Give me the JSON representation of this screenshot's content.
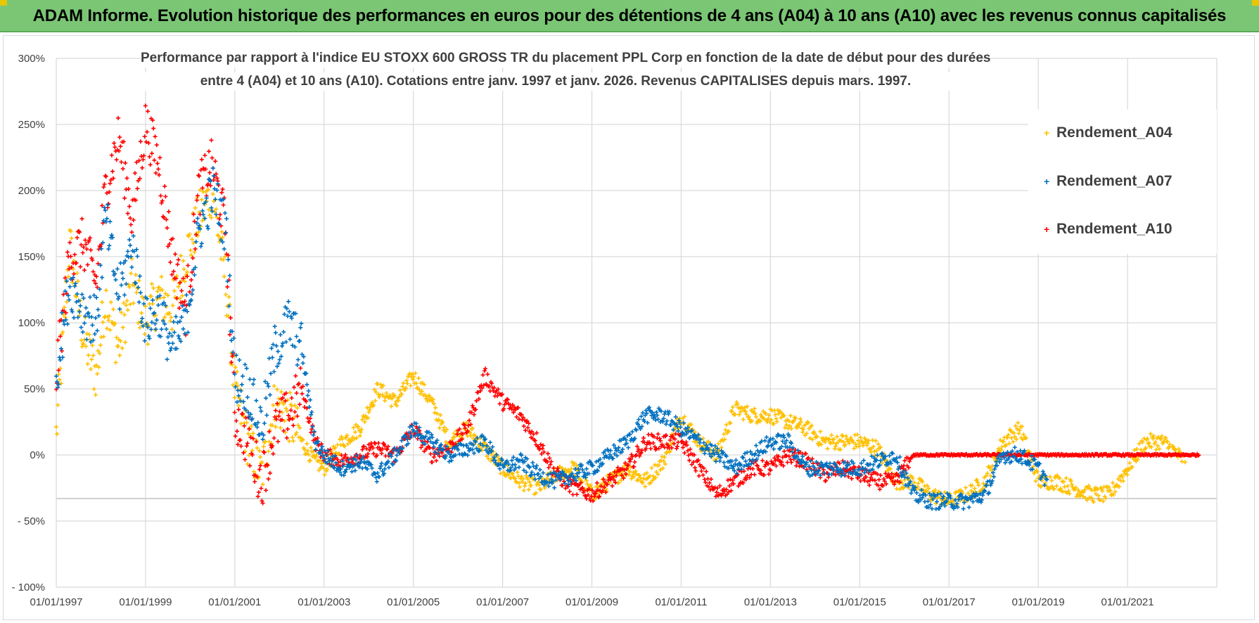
{
  "banner": {
    "title": "ADAM Informe. Evolution historique des performances en euros pour des détentions de 4 ans (A04) à 10 ans (A10) avec les revenus connus capitalisés"
  },
  "colors": {
    "banner_bg": "#7ac674",
    "corner": "#e6c700",
    "A04": "#ffc000",
    "A07": "#0070c0",
    "A10": "#ff0000",
    "grid": "#d9d9d9",
    "axis_text": "#404040"
  },
  "chart_data": {
    "type": "scatter",
    "title_line1": "Performance par rapport à l'indice EU STOXX 600 GROSS TR  du placement PPL Corp en fonction de la date de début pour des durées",
    "title_line2": "entre 4 (A04) et 10 ans (A10). Cotations entre janv. 1997 et janv. 2026. Revenus CAPITALISES depuis mars. 1997.",
    "x_range": [
      1997.0,
      2023.0
    ],
    "ylim": [
      -100,
      300
    ],
    "y_ticks": [
      300,
      250,
      200,
      150,
      100,
      50,
      0,
      -50,
      -100
    ],
    "y_tick_labels": [
      "300%",
      "250%",
      "200%",
      "150%",
      "100%",
      "50%",
      "0%",
      "- 50%",
      "- 100%"
    ],
    "x_ticks": [
      1997,
      1999,
      2001,
      2003,
      2005,
      2007,
      2009,
      2011,
      2013,
      2015,
      2017,
      2019,
      2021
    ],
    "x_tick_labels": [
      "01/01/1997",
      "01/01/1999",
      "01/01/2001",
      "01/01/2003",
      "01/01/2005",
      "01/01/2007",
      "01/01/2009",
      "01/01/2011",
      "01/01/2013",
      "01/01/2015",
      "01/01/2017",
      "01/01/2019",
      "01/01/2021"
    ],
    "legend_position": "top-right",
    "series": [
      {
        "name": "Rendement_A04",
        "x_start": 1997.0,
        "x_end": 2022.3,
        "x": [
          1997.0,
          1997.3,
          1997.6,
          1997.9,
          1998.1,
          1998.4,
          1998.7,
          1999.0,
          1999.3,
          1999.6,
          1999.9,
          2000.2,
          2000.5,
          2000.8,
          2001.0,
          2001.3,
          2001.6,
          2001.9,
          2002.2,
          2002.5,
          2002.8,
          2003.0,
          2003.4,
          2003.8,
          2004.2,
          2004.6,
          2005.0,
          2005.4,
          2005.8,
          2006.2,
          2006.6,
          2007.0,
          2007.4,
          2007.8,
          2008.2,
          2008.6,
          2009.0,
          2009.4,
          2009.8,
          2010.2,
          2010.6,
          2011.0,
          2011.4,
          2011.8,
          2012.2,
          2012.6,
          2013.0,
          2013.4,
          2013.8,
          2014.2,
          2014.6,
          2015.0,
          2015.4,
          2015.8,
          2016.2,
          2016.6,
          2017.0,
          2017.4,
          2017.8,
          2018.2,
          2018.6,
          2019.0,
          2019.4,
          2019.8,
          2020.2,
          2020.6,
          2021.0,
          2021.4,
          2021.8,
          2022.3
        ],
        "y": [
          15,
          160,
          90,
          60,
          120,
          80,
          130,
          100,
          120,
          110,
          150,
          180,
          200,
          130,
          50,
          10,
          -15,
          40,
          30,
          10,
          -5,
          -10,
          10,
          20,
          50,
          40,
          60,
          40,
          10,
          20,
          5,
          -10,
          -20,
          -25,
          -15,
          -10,
          -30,
          -20,
          -10,
          -20,
          -5,
          30,
          10,
          0,
          35,
          30,
          30,
          25,
          20,
          10,
          10,
          10,
          5,
          -20,
          -20,
          -30,
          -35,
          -30,
          -20,
          10,
          20,
          -20,
          -20,
          -25,
          -30,
          -30,
          -10,
          10,
          10,
          -5
        ]
      },
      {
        "name": "Rendement_A07",
        "x_start": 1997.0,
        "x_end": 2019.2,
        "x": [
          1997.0,
          1997.3,
          1997.6,
          1997.9,
          1998.1,
          1998.4,
          1998.7,
          1999.0,
          1999.3,
          1999.6,
          1999.9,
          2000.2,
          2000.5,
          2000.8,
          2001.0,
          2001.3,
          2001.6,
          2001.9,
          2002.2,
          2002.5,
          2002.8,
          2003.0,
          2003.4,
          2003.8,
          2004.2,
          2004.6,
          2005.0,
          2005.4,
          2005.8,
          2006.2,
          2006.6,
          2007.0,
          2007.4,
          2007.8,
          2008.2,
          2008.6,
          2009.0,
          2009.4,
          2009.8,
          2010.2,
          2010.6,
          2011.0,
          2011.4,
          2011.8,
          2012.2,
          2012.6,
          2013.0,
          2013.4,
          2013.8,
          2014.2,
          2014.6,
          2015.0,
          2015.4,
          2015.8,
          2016.2,
          2016.6,
          2017.0,
          2017.4,
          2017.8,
          2018.2,
          2018.6,
          2019.0,
          2019.2
        ],
        "y": [
          60,
          130,
          110,
          100,
          180,
          120,
          160,
          100,
          110,
          80,
          100,
          170,
          200,
          170,
          60,
          50,
          20,
          80,
          100,
          80,
          10,
          0,
          -10,
          -5,
          -15,
          0,
          20,
          10,
          0,
          5,
          10,
          -10,
          -5,
          -15,
          -20,
          -15,
          -10,
          0,
          10,
          30,
          30,
          20,
          10,
          0,
          -10,
          0,
          10,
          10,
          -10,
          -10,
          -10,
          -10,
          -5,
          0,
          -30,
          -35,
          -35,
          -35,
          -30,
          0,
          0,
          -10,
          -20
        ]
      },
      {
        "name": "Rendement_A10",
        "x_start": 1997.0,
        "x_end": 2022.6,
        "x": [
          1997.0,
          1997.3,
          1997.6,
          1997.9,
          1998.1,
          1998.4,
          1998.7,
          1999.0,
          1999.3,
          1999.6,
          1999.9,
          2000.2,
          2000.5,
          2000.8,
          2001.0,
          2001.3,
          2001.6,
          2001.9,
          2002.2,
          2002.5,
          2002.8,
          2003.0,
          2003.4,
          2003.8,
          2004.2,
          2004.6,
          2005.0,
          2005.4,
          2005.8,
          2006.2,
          2006.6,
          2007.0,
          2007.4,
          2007.8,
          2008.2,
          2008.6,
          2009.0,
          2009.4,
          2009.8,
          2010.2,
          2010.6,
          2011.0,
          2011.4,
          2011.8,
          2012.2,
          2012.6,
          2013.0,
          2013.4,
          2013.8,
          2014.2,
          2014.6,
          2015.0,
          2015.4,
          2015.8,
          2016.2,
          2016.6,
          2017.0,
          2017.4,
          2017.8,
          2018.2,
          2018.6,
          2019.0,
          2019.4,
          2019.8,
          2020.2,
          2020.6,
          2021.0,
          2021.4,
          2021.8,
          2022.3,
          2022.6
        ],
        "y": [
          60,
          150,
          160,
          130,
          200,
          240,
          180,
          250,
          220,
          150,
          110,
          200,
          220,
          170,
          30,
          10,
          -20,
          20,
          30,
          50,
          10,
          0,
          -5,
          0,
          5,
          0,
          20,
          0,
          5,
          20,
          60,
          40,
          30,
          10,
          -15,
          -25,
          -30,
          -20,
          -10,
          10,
          10,
          10,
          -10,
          -30,
          -20,
          -10,
          -10,
          0,
          -5,
          -15,
          -10,
          -15,
          -20,
          -20,
          0,
          0,
          0,
          0,
          0,
          0,
          0,
          0,
          0,
          0,
          0,
          0,
          0,
          0,
          0,
          0,
          0
        ]
      }
    ]
  }
}
